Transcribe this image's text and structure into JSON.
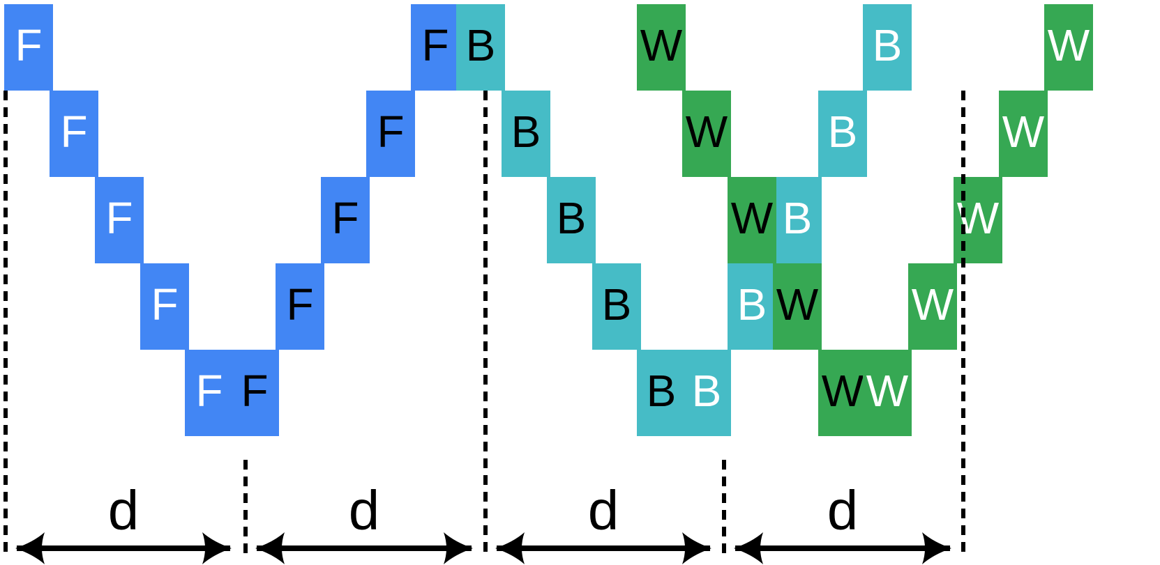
{
  "colors": {
    "F": "#4286f4",
    "B": "#46bcc6",
    "W": "#36a853",
    "text_light": "#ffffff",
    "text_dark": "#000000",
    "line": "#000000"
  },
  "cells": [
    {
      "label": "F",
      "type": "F",
      "text": "light"
    },
    {
      "label": "F",
      "type": "F",
      "text": "light"
    },
    {
      "label": "F",
      "type": "F",
      "text": "light"
    },
    {
      "label": "F",
      "type": "F",
      "text": "light"
    },
    {
      "label": "F",
      "type": "F",
      "text": "light"
    },
    {
      "label": "F",
      "type": "F",
      "text": "dark"
    },
    {
      "label": "F",
      "type": "F",
      "text": "dark"
    },
    {
      "label": "F",
      "type": "F",
      "text": "dark"
    },
    {
      "label": "F",
      "type": "F",
      "text": "dark"
    },
    {
      "label": "F",
      "type": "F",
      "text": "dark"
    },
    {
      "label": "B",
      "type": "B",
      "text": "dark"
    },
    {
      "label": "B",
      "type": "B",
      "text": "dark"
    },
    {
      "label": "B",
      "type": "B",
      "text": "dark"
    },
    {
      "label": "B",
      "type": "B",
      "text": "dark"
    },
    {
      "label": "B",
      "type": "B",
      "text": "dark"
    },
    {
      "label": "B",
      "type": "B",
      "text": "light"
    },
    {
      "label": "B",
      "type": "B",
      "text": "light"
    },
    {
      "label": "B",
      "type": "B",
      "text": "light"
    },
    {
      "label": "B",
      "type": "B",
      "text": "light"
    },
    {
      "label": "B",
      "type": "B",
      "text": "light"
    },
    {
      "label": "W",
      "type": "W",
      "text": "dark"
    },
    {
      "label": "W",
      "type": "W",
      "text": "dark"
    },
    {
      "label": "W",
      "type": "W",
      "text": "dark"
    },
    {
      "label": "W",
      "type": "W",
      "text": "dark"
    },
    {
      "label": "W",
      "type": "W",
      "text": "dark"
    },
    {
      "label": "W",
      "type": "W",
      "text": "light"
    },
    {
      "label": "W",
      "type": "W",
      "text": "light"
    },
    {
      "label": "W",
      "type": "W",
      "text": "light"
    },
    {
      "label": "W",
      "type": "W",
      "text": "light"
    },
    {
      "label": "W",
      "type": "W",
      "text": "light"
    }
  ],
  "spans": [
    {
      "label": "d"
    },
    {
      "label": "d"
    },
    {
      "label": "d"
    },
    {
      "label": "d"
    }
  ]
}
